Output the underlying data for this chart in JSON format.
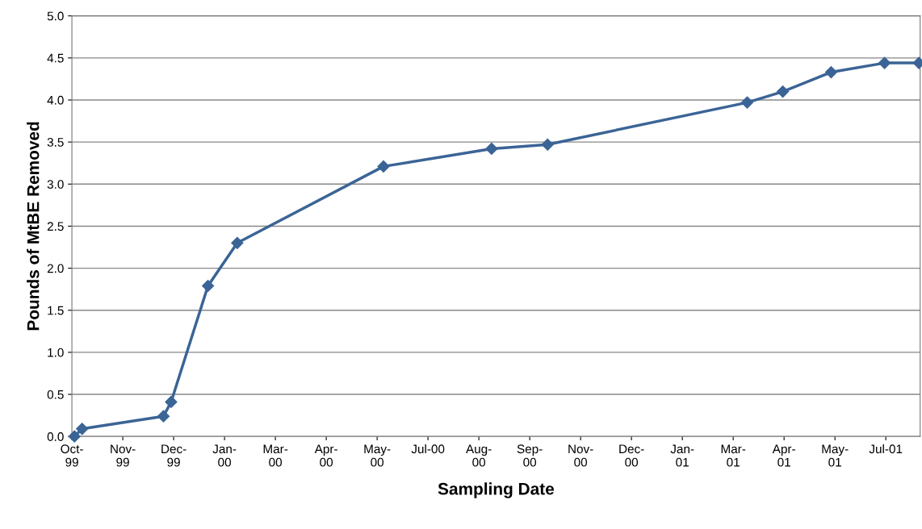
{
  "chart_data": {
    "type": "line",
    "xlabel": "Sampling Date",
    "ylabel": "Pounds of MtBE Removed",
    "x": [
      "1999-10-03",
      "1999-10-09",
      "1999-12-12",
      "1999-12-18",
      "2000-01-16",
      "2000-02-08",
      "2000-06-02",
      "2000-08-26",
      "2000-10-09",
      "2001-03-15",
      "2001-04-12",
      "2001-05-20",
      "2001-07-01",
      "2001-07-28"
    ],
    "series": [
      {
        "color": "#3b6496",
        "values": [
          0.0,
          0.09,
          0.24,
          0.41,
          1.79,
          2.3,
          3.21,
          3.42,
          3.47,
          3.97,
          4.1,
          4.33,
          4.44,
          4.44
        ]
      }
    ],
    "xlim": [
      "1999-10-01",
      "2001-07-29"
    ],
    "xticks": [
      {
        "value": "1999-10-01",
        "label": "Oct-\n99"
      },
      {
        "value": "1999-11-10",
        "label": "Nov-\n99"
      },
      {
        "value": "1999-12-20",
        "label": "Dec-\n99"
      },
      {
        "value": "2000-01-29",
        "label": "Jan-\n00"
      },
      {
        "value": "2000-03-09",
        "label": "Mar-\n00"
      },
      {
        "value": "2000-04-18",
        "label": "Apr-\n00"
      },
      {
        "value": "2000-05-28",
        "label": "May-\n00"
      },
      {
        "value": "2000-07-07",
        "label": "Jul-00"
      },
      {
        "value": "2000-08-16",
        "label": "Aug-\n00"
      },
      {
        "value": "2000-09-25",
        "label": "Sep-\n00"
      },
      {
        "value": "2000-11-04",
        "label": "Nov-\n00"
      },
      {
        "value": "2000-12-14",
        "label": "Dec-\n00"
      },
      {
        "value": "2001-01-23",
        "label": "Jan-\n01"
      },
      {
        "value": "2001-03-04",
        "label": "Mar-\n01"
      },
      {
        "value": "2001-04-13",
        "label": "Apr-\n01"
      },
      {
        "value": "2001-05-23",
        "label": "May-\n01"
      },
      {
        "value": "2001-07-02",
        "label": "Jul-01"
      }
    ],
    "ylim": [
      0,
      5
    ],
    "yticks": [
      {
        "value": 0,
        "label": "0.0"
      },
      {
        "value": 0.5,
        "label": "0.5"
      },
      {
        "value": 1,
        "label": "1.0"
      },
      {
        "value": 1.5,
        "label": "1.5"
      },
      {
        "value": 2,
        "label": "2.0"
      },
      {
        "value": 2.5,
        "label": "2.5"
      },
      {
        "value": 3,
        "label": "3.0"
      },
      {
        "value": 3.5,
        "label": "3.5"
      },
      {
        "value": 4,
        "label": "4.0"
      },
      {
        "value": 4.5,
        "label": "4.5"
      },
      {
        "value": 5,
        "label": "5.0"
      }
    ],
    "grid": "y",
    "marker": "diamond",
    "line_style": "solid"
  }
}
